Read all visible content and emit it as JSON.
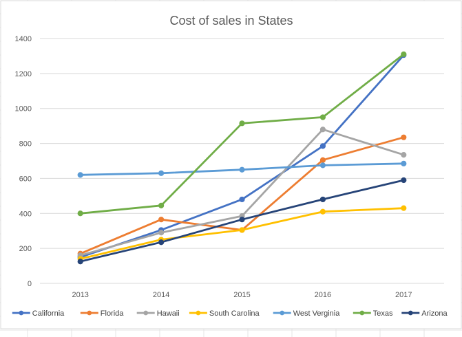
{
  "chart_data": {
    "type": "line",
    "title": "Cost of sales in States",
    "xlabel": "",
    "ylabel": "",
    "categories": [
      "2013",
      "2014",
      "2015",
      "2016",
      "2017"
    ],
    "ylim": [
      0,
      1400
    ],
    "yticks": [
      0,
      200,
      400,
      600,
      800,
      1000,
      1200,
      1400
    ],
    "grid": true,
    "legend_position": "bottom",
    "series": [
      {
        "name": "California",
        "color": "#4472C4",
        "values": [
          150,
          305,
          480,
          785,
          1305
        ]
      },
      {
        "name": "Florida",
        "color": "#ED7D31",
        "values": [
          170,
          365,
          305,
          705,
          835
        ]
      },
      {
        "name": "Hawaii",
        "color": "#A5A5A5",
        "values": [
          160,
          290,
          385,
          880,
          735
        ]
      },
      {
        "name": "South Carolina",
        "color": "#FFC000",
        "values": [
          140,
          250,
          305,
          410,
          430
        ]
      },
      {
        "name": "West Verginia",
        "color": "#5B9BD5",
        "values": [
          620,
          630,
          650,
          675,
          685
        ]
      },
      {
        "name": "Texas",
        "color": "#70AD47",
        "values": [
          400,
          445,
          915,
          950,
          1310
        ]
      },
      {
        "name": "Arizona",
        "color": "#264478",
        "values": [
          125,
          235,
          365,
          480,
          590
        ]
      }
    ]
  }
}
